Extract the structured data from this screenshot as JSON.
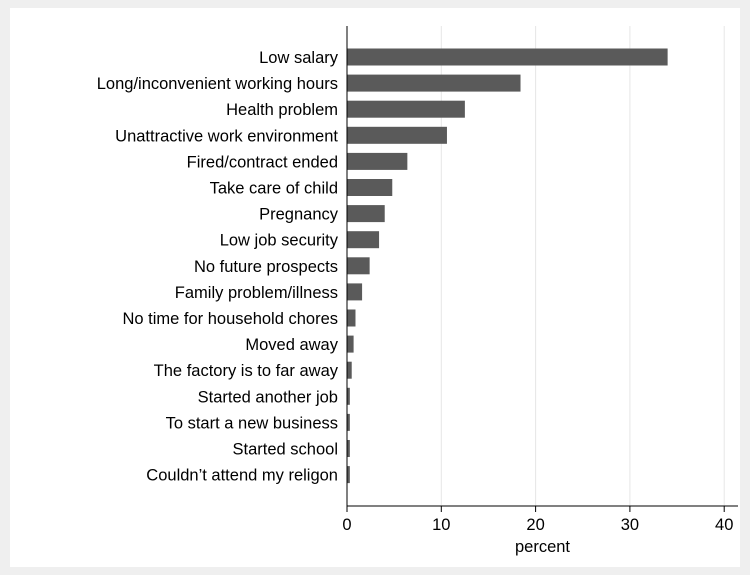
{
  "chart_data": {
    "type": "bar",
    "orientation": "horizontal",
    "categories": [
      "Low salary",
      "Long/inconvenient working hours",
      "Health problem",
      "Unattractive work environment",
      "Fired/contract ended",
      "Take care of child",
      "Pregnancy",
      "Low job security",
      "No future prospects",
      "Family problem/illness",
      "No time for household chores",
      "Moved away",
      "The factory is to far away",
      "Started another job",
      "To start a new business",
      "Started school",
      "Couldn’t attend  my religon"
    ],
    "values": [
      34.0,
      18.4,
      12.5,
      10.6,
      6.4,
      4.8,
      4.0,
      3.4,
      2.4,
      1.6,
      0.9,
      0.7,
      0.5,
      0.3,
      0.3,
      0.3,
      0.3
    ],
    "xlabel": "percent",
    "xlim": [
      0,
      40
    ],
    "xticks": [
      0,
      10,
      20,
      30,
      40
    ],
    "grid": true,
    "colors": {
      "bar": "#5a5a5a",
      "outer_background": "#efefef",
      "plot_background": "#ffffff",
      "grid": "#e6e6e6",
      "axis": "#000000"
    }
  }
}
